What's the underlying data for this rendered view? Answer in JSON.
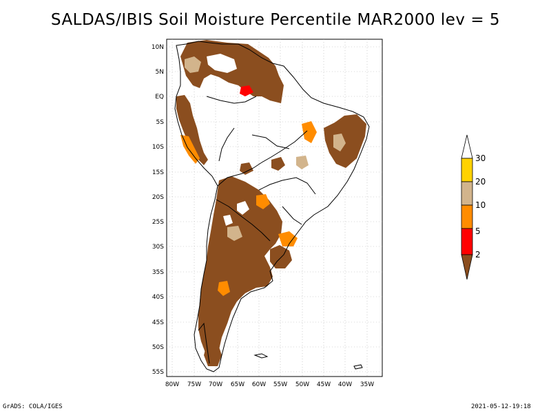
{
  "title": "SALDAS/IBIS Soil Moisture Percentile MAR2000 lev = 5",
  "footer": {
    "left": "GrADS: COLA/IGES",
    "right": "2021-05-12-19:18"
  },
  "map": {
    "lat_labels": [
      "10N",
      "5N",
      "EQ",
      "5S",
      "10S",
      "15S",
      "20S",
      "25S",
      "30S",
      "35S",
      "40S",
      "45S",
      "50S",
      "55S"
    ],
    "lon_labels": [
      "80W",
      "75W",
      "70W",
      "65W",
      "60W",
      "55W",
      "50W",
      "45W",
      "40W",
      "35W"
    ],
    "lat_range": [
      -56,
      12
    ],
    "lon_range": [
      -81,
      -34
    ]
  },
  "colorbar": {
    "labels": [
      "2",
      "5",
      "10",
      "20",
      "30"
    ],
    "colors": {
      "below_2": "#8B4E1F",
      "2_5": "#FF0000",
      "5_10": "#FF8C00",
      "10_20": "#D2B48C",
      "20_30": "#FFD200",
      "above_30": "#FFFFFF"
    }
  },
  "palette": {
    "dry": "#8B4E1F",
    "red": "#FF0000",
    "orange": "#FF8C00",
    "tan": "#D2B48C",
    "yellow": "#FFD200"
  }
}
